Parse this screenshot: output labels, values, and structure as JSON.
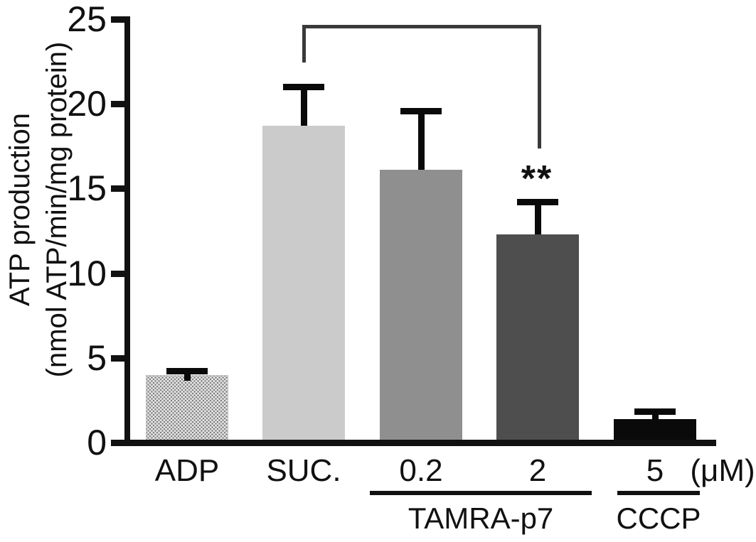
{
  "figure": {
    "background": "#ffffff",
    "axis_color": "#111111"
  },
  "chart_data": {
    "type": "bar",
    "title": "",
    "ylabel_line1": "ATP production",
    "ylabel_line2": "(nmol ATP/min/mg protein)",
    "unit_label": "(μM)",
    "ylim": [
      0,
      25
    ],
    "yticks": [
      0,
      5,
      10,
      15,
      20,
      25
    ],
    "categories": [
      "ADP",
      "SUC.",
      "0.2",
      "2",
      "5"
    ],
    "values": [
      4.0,
      18.7,
      16.1,
      12.3,
      1.4
    ],
    "errors_plus": [
      0.25,
      2.3,
      3.5,
      1.9,
      0.45
    ],
    "bars": [
      {
        "label": "ADP",
        "value": 4.0,
        "error_plus": 0.25,
        "fill": "#e9e9e9",
        "pattern": "dots",
        "dot_color": "#828282"
      },
      {
        "label": "SUC.",
        "value": 18.7,
        "error_plus": 2.3,
        "fill": "#cbcbcb",
        "pattern": "solid"
      },
      {
        "label": "0.2",
        "value": 16.1,
        "error_plus": 3.5,
        "fill": "#8f8f8f",
        "pattern": "solid"
      },
      {
        "label": "2",
        "value": 12.3,
        "error_plus": 1.9,
        "fill": "#4e4e4e",
        "pattern": "solid"
      },
      {
        "label": "5",
        "value": 1.4,
        "error_plus": 0.45,
        "fill": "#0a0a0a",
        "pattern": "solid"
      }
    ],
    "groups": [
      {
        "label": "TAMRA-p7",
        "bar_labels": [
          "0.2",
          "2"
        ]
      },
      {
        "label": "CCCP",
        "bar_labels": [
          "5"
        ]
      }
    ],
    "significance": {
      "from": "SUC.",
      "to": "2",
      "label": "**"
    },
    "error_bar_color": "#0a0a0a",
    "grid": false,
    "legend": "none"
  }
}
